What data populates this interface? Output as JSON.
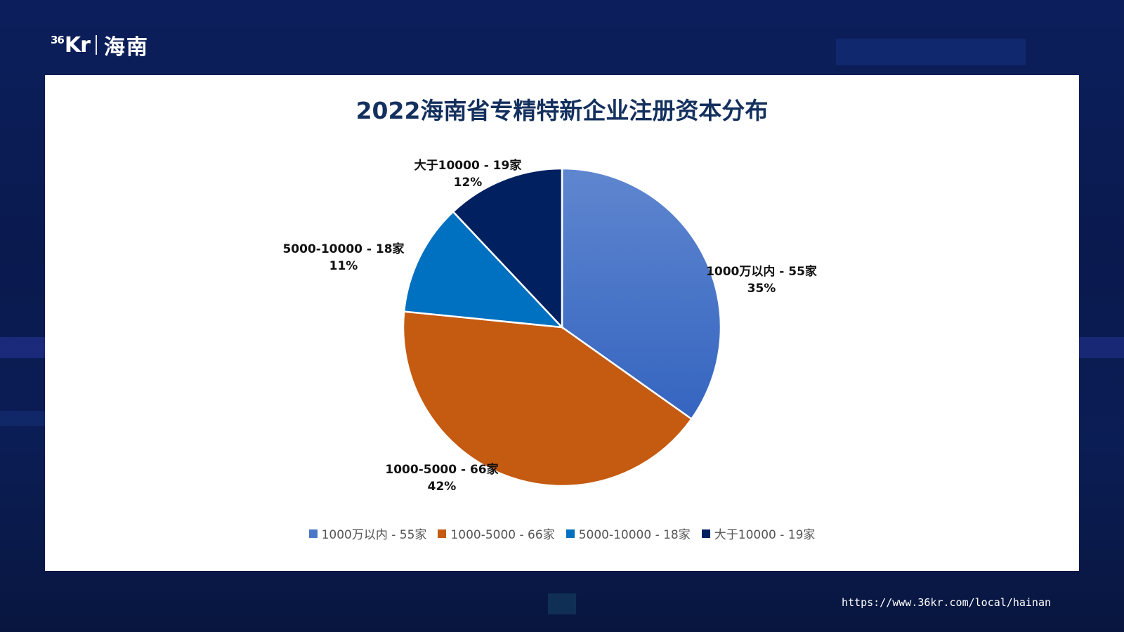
{
  "brand": {
    "logo_prefix": "36",
    "logo_main": "Kr",
    "region": "海南"
  },
  "footer": {
    "url": "https://www.36kr.com/local/hainan"
  },
  "chart_data": {
    "type": "pie",
    "title": "2022海南省专精特新企业注册资本分布",
    "start_angle_deg": 0,
    "direction": "clockwise",
    "slices": [
      {
        "label": "1000万以内 - 55家",
        "value": 55,
        "percent": "35%",
        "color": "#4a78c8"
      },
      {
        "label": "1000-5000 - 66家",
        "value": 66,
        "percent": "42%",
        "color": "#c55a11"
      },
      {
        "label": "5000-10000 - 18家",
        "value": 18,
        "percent": "11%",
        "color": "#0070c0"
      },
      {
        "label": "大于10000 - 19家",
        "value": 19,
        "percent": "12%",
        "color": "#002060"
      }
    ],
    "legend_position": "bottom"
  }
}
